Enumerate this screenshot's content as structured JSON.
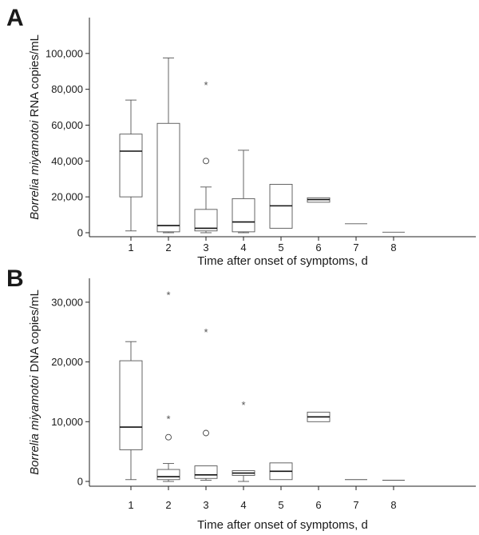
{
  "chart_data": [
    {
      "type": "box",
      "panel": "A",
      "xlabel": "Time after onset of symptoms, d",
      "ylabel_italic": "Borrelia miyamotoi",
      "ylabel_rest": " RNA copies/mL",
      "ylim": [
        0,
        120000
      ],
      "yticks": [
        0,
        20000,
        40000,
        60000,
        80000,
        100000
      ],
      "ytick_labels": [
        "0",
        "20,000",
        "40,000",
        "60,000",
        "80,000",
        "100,000"
      ],
      "categories": [
        "1",
        "2",
        "3",
        "4",
        "5",
        "6",
        "7",
        "8"
      ],
      "boxes": [
        {
          "x": "1",
          "min": 1000,
          "q1": 20000,
          "median": 45500,
          "q3": 55000,
          "max": 74000,
          "outliers": [],
          "extremes": []
        },
        {
          "x": "2",
          "min": 0,
          "q1": 500,
          "median": 4000,
          "q3": 61000,
          "max": 97500,
          "outliers": [],
          "extremes": []
        },
        {
          "x": "3",
          "min": 0,
          "q1": 1000,
          "median": 2500,
          "q3": 13000,
          "max": 25500,
          "outliers": [
            40000
          ],
          "extremes": [
            83500
          ]
        },
        {
          "x": "4",
          "min": 0,
          "q1": 500,
          "median": 6000,
          "q3": 19000,
          "max": 46000,
          "outliers": [],
          "extremes": []
        },
        {
          "x": "5",
          "min": 2500,
          "q1": 2500,
          "median": 15000,
          "q3": 27000,
          "max": 27000,
          "outliers": [],
          "extremes": []
        },
        {
          "x": "6",
          "min": 17000,
          "q1": 17000,
          "median": 18500,
          "q3": 19500,
          "max": 19500,
          "outliers": [],
          "extremes": []
        },
        {
          "x": "7",
          "min": 5000,
          "q1": 5000,
          "median": 5000,
          "q3": 5000,
          "max": 5000,
          "outliers": [],
          "extremes": []
        },
        {
          "x": "8",
          "min": 300,
          "q1": 300,
          "median": 300,
          "q3": 300,
          "max": 300,
          "outliers": [],
          "extremes": []
        }
      ]
    },
    {
      "type": "box",
      "panel": "B",
      "xlabel": "Time after onset of symptoms, d",
      "ylabel_italic": "Borrelia miyamotoi",
      "ylabel_rest": " DNA copies/mL",
      "ylim": [
        0,
        34000
      ],
      "yticks": [
        0,
        10000,
        20000,
        30000
      ],
      "ytick_labels": [
        "0",
        "10,000",
        "20,000",
        "30,000"
      ],
      "categories": [
        "1",
        "2",
        "3",
        "4",
        "5",
        "6",
        "7",
        "8"
      ],
      "boxes": [
        {
          "x": "1",
          "min": 300,
          "q1": 5300,
          "median": 9100,
          "q3": 20200,
          "max": 23400,
          "outliers": [],
          "extremes": []
        },
        {
          "x": "2",
          "min": 0,
          "q1": 300,
          "median": 800,
          "q3": 2000,
          "max": 3000,
          "outliers": [
            7400
          ],
          "extremes": [
            10800,
            31500
          ]
        },
        {
          "x": "3",
          "min": 200,
          "q1": 500,
          "median": 1100,
          "q3": 2600,
          "max": 2600,
          "outliers": [
            8100
          ],
          "extremes": [
            25300
          ]
        },
        {
          "x": "4",
          "min": 0,
          "q1": 1000,
          "median": 1400,
          "q3": 1800,
          "max": 1800,
          "outliers": [],
          "extremes": [
            13100
          ]
        },
        {
          "x": "5",
          "min": 300,
          "q1": 300,
          "median": 1700,
          "q3": 3100,
          "max": 3100,
          "outliers": [],
          "extremes": []
        },
        {
          "x": "6",
          "min": 10000,
          "q1": 10000,
          "median": 10800,
          "q3": 11600,
          "max": 11600,
          "outliers": [],
          "extremes": []
        },
        {
          "x": "7",
          "min": 300,
          "q1": 300,
          "median": 300,
          "q3": 300,
          "max": 300,
          "outliers": [],
          "extremes": []
        },
        {
          "x": "8",
          "min": 200,
          "q1": 200,
          "median": 200,
          "q3": 200,
          "max": 200,
          "outliers": [],
          "extremes": []
        }
      ]
    }
  ]
}
